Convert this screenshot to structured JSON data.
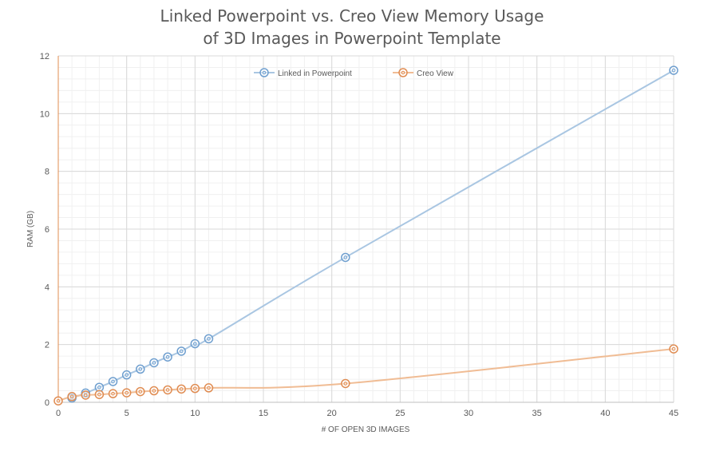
{
  "chart_data": {
    "type": "scatter",
    "title_lines": [
      "Linked Powerpoint vs. Creo View Memory Usage",
      "of 3D Images in Powerpoint Template"
    ],
    "xlabel": "# OF OPEN 3D IMAGES",
    "ylabel": "RAM (GB)",
    "xlim": [
      0,
      45
    ],
    "ylim": [
      0,
      12
    ],
    "x_ticks": [
      0,
      5,
      10,
      15,
      20,
      25,
      30,
      35,
      40,
      45
    ],
    "y_ticks": [
      0,
      2,
      4,
      6,
      8,
      10,
      12
    ],
    "grid": true,
    "legend_position": "top",
    "series": [
      {
        "name": "Linked in Powerpoint",
        "color": "#6f9fcf",
        "line_color": "#a9c6e2",
        "x": [
          1,
          2,
          3,
          4,
          5,
          6,
          7,
          8,
          9,
          10,
          11,
          21,
          45
        ],
        "y": [
          0.15,
          0.32,
          0.52,
          0.72,
          0.95,
          1.15,
          1.37,
          1.57,
          1.77,
          2.03,
          2.2,
          5.02,
          11.5
        ]
      },
      {
        "name": "Creo View",
        "color": "#e08c52",
        "line_color": "#f0bc94",
        "x": [
          0,
          1,
          2,
          3,
          4,
          5,
          6,
          7,
          8,
          9,
          10,
          11,
          21,
          45
        ],
        "y": [
          0.05,
          0.2,
          0.25,
          0.27,
          0.3,
          0.33,
          0.37,
          0.4,
          0.43,
          0.46,
          0.48,
          0.5,
          0.65,
          1.85
        ]
      }
    ]
  }
}
